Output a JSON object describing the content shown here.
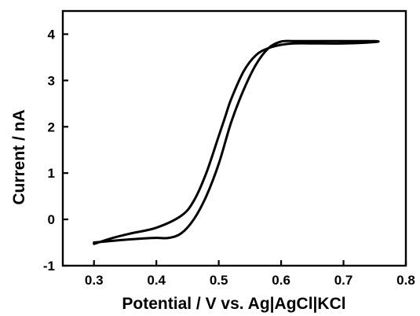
{
  "chart_data": {
    "type": "line",
    "title": "",
    "xlabel": "Potential / V vs. Ag|AgCl|KCl",
    "ylabel": "Current / nA",
    "xlim": [
      0.25,
      0.8
    ],
    "ylim": [
      -1,
      4.5
    ],
    "x_ticks": [
      0.3,
      0.4,
      0.5,
      0.6,
      0.7,
      0.8
    ],
    "x_tick_labels": [
      "0.3",
      "0.4",
      "0.5",
      "0.6",
      "0.7",
      "0.8"
    ],
    "y_ticks": [
      -1,
      0,
      1,
      2,
      3,
      4
    ],
    "y_tick_labels": [
      "-1",
      "0",
      "1",
      "2",
      "3",
      "4"
    ],
    "grid": false,
    "legend": "none",
    "series": [
      {
        "color": "#000000",
        "x": [
          0.3,
          0.33,
          0.36,
          0.4,
          0.44,
          0.46,
          0.48,
          0.5,
          0.51,
          0.52,
          0.54,
          0.56,
          0.58,
          0.6,
          0.62,
          0.65,
          0.7,
          0.75,
          0.75,
          0.7,
          0.65,
          0.62,
          0.6,
          0.58,
          0.56,
          0.54,
          0.52,
          0.5,
          0.48,
          0.46,
          0.44,
          0.42,
          0.4,
          0.37,
          0.34,
          0.3
        ],
        "y": [
          -0.53,
          -0.4,
          -0.3,
          -0.18,
          0.08,
          0.4,
          1.0,
          1.8,
          2.2,
          2.6,
          3.2,
          3.55,
          3.7,
          3.77,
          3.8,
          3.8,
          3.8,
          3.83,
          3.85,
          3.85,
          3.85,
          3.85,
          3.84,
          3.7,
          3.35,
          2.8,
          2.1,
          1.2,
          0.5,
          0.0,
          -0.3,
          -0.4,
          -0.4,
          -0.42,
          -0.45,
          -0.5
        ]
      }
    ]
  }
}
